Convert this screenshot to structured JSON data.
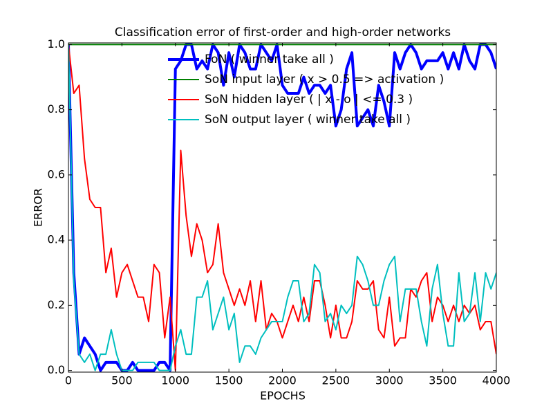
{
  "chart_data": {
    "type": "line",
    "title": "Classification error of first-order and high-order networks",
    "xlabel": "EPOCHS",
    "ylabel": "ERROR",
    "x": [
      0,
      50,
      100,
      150,
      200,
      250,
      300,
      350,
      400,
      450,
      500,
      550,
      600,
      650,
      700,
      750,
      800,
      850,
      900,
      950,
      1000,
      1050,
      1100,
      1150,
      1200,
      1250,
      1300,
      1350,
      1400,
      1450,
      1500,
      1550,
      1600,
      1650,
      1700,
      1750,
      1800,
      1850,
      1900,
      1950,
      2000,
      2050,
      2100,
      2150,
      2200,
      2250,
      2300,
      2350,
      2400,
      2450,
      2500,
      2550,
      2600,
      2650,
      2700,
      2750,
      2800,
      2850,
      2900,
      2950,
      3000,
      3050,
      3100,
      3150,
      3200,
      3250,
      3300,
      3350,
      3400,
      3450,
      3500,
      3550,
      3600,
      3650,
      3700,
      3750,
      3800,
      3850,
      3900,
      3950,
      4000
    ],
    "series": [
      {
        "name": "FoN ( winner take all )",
        "color": "#0000ff",
        "linewidth": 4,
        "values": [
          1.0,
          0.3,
          0.05,
          0.1,
          0.075,
          0.05,
          0.0,
          0.025,
          0.025,
          0.025,
          0.0,
          0.0,
          0.025,
          0.0,
          0.0,
          0.0,
          0.0,
          0.025,
          0.025,
          0.0,
          0.925,
          0.95,
          1.0,
          1.0,
          0.925,
          0.95,
          0.925,
          1.0,
          0.975,
          0.875,
          0.975,
          0.9,
          1.0,
          0.975,
          0.925,
          0.925,
          1.0,
          0.975,
          0.95,
          1.0,
          0.875,
          0.85,
          0.85,
          0.85,
          0.9,
          0.85,
          0.875,
          0.875,
          0.85,
          0.875,
          0.75,
          0.8,
          0.925,
          0.975,
          0.75,
          0.775,
          0.8,
          0.75,
          0.875,
          0.825,
          0.75,
          0.975,
          0.925,
          0.975,
          1.0,
          0.975,
          0.925,
          0.95,
          0.95,
          0.95,
          0.975,
          0.925,
          0.975,
          0.925,
          1.0,
          0.95,
          0.925,
          1.0,
          1.0,
          0.975,
          0.925
        ]
      },
      {
        "name": "SoN input layer ( x > 0.5 => activation )",
        "color": "#008000",
        "linewidth": 2,
        "values": [
          1,
          1,
          1,
          1,
          1,
          1,
          1,
          1,
          1,
          1,
          1,
          1,
          1,
          1,
          1,
          1,
          1,
          1,
          1,
          1,
          1,
          1,
          1,
          1,
          1,
          1,
          1,
          1,
          1,
          1,
          1,
          1,
          1,
          1,
          1,
          1,
          1,
          1,
          1,
          1,
          1,
          1,
          1,
          1,
          1,
          1,
          1,
          1,
          1,
          1,
          1,
          1,
          1,
          1,
          1,
          1,
          1,
          1,
          1,
          1,
          1,
          1,
          1,
          1,
          1,
          1,
          1,
          1,
          1,
          1,
          1,
          1,
          1,
          1,
          1,
          1,
          1,
          1,
          1,
          1,
          1
        ]
      },
      {
        "name": "SoN hidden layer ( | x - o | <= 0.3 )",
        "color": "#ff0000",
        "linewidth": 2,
        "values": [
          1.0,
          0.85,
          0.875,
          0.65,
          0.525,
          0.5,
          0.5,
          0.3,
          0.375,
          0.225,
          0.3,
          0.325,
          0.275,
          0.225,
          0.225,
          0.15,
          0.325,
          0.3,
          0.1,
          0.225,
          0.0,
          0.675,
          0.475,
          0.35,
          0.45,
          0.4,
          0.3,
          0.325,
          0.45,
          0.3,
          0.25,
          0.2,
          0.25,
          0.2,
          0.275,
          0.15,
          0.275,
          0.125,
          0.175,
          0.15,
          0.1,
          0.15,
          0.2,
          0.15,
          0.225,
          0.15,
          0.275,
          0.275,
          0.2,
          0.1,
          0.2,
          0.1,
          0.1,
          0.15,
          0.275,
          0.25,
          0.25,
          0.275,
          0.125,
          0.1,
          0.225,
          0.075,
          0.1,
          0.1,
          0.25,
          0.225,
          0.275,
          0.3,
          0.15,
          0.225,
          0.2,
          0.15,
          0.2,
          0.15,
          0.2,
          0.175,
          0.2,
          0.125,
          0.15,
          0.15,
          0.05
        ]
      },
      {
        "name": "SoN output layer ( winner take all )",
        "color": "#00bfbf",
        "linewidth": 2,
        "values": [
          1.0,
          0.275,
          0.05,
          0.025,
          0.05,
          0.0,
          0.05,
          0.05,
          0.125,
          0.05,
          0.0,
          0.0,
          0.0,
          0.025,
          0.025,
          0.025,
          0.025,
          0.0,
          0.0,
          0.0,
          0.075,
          0.125,
          0.05,
          0.05,
          0.225,
          0.225,
          0.275,
          0.125,
          0.175,
          0.225,
          0.125,
          0.175,
          0.025,
          0.075,
          0.075,
          0.05,
          0.1,
          0.125,
          0.15,
          0.15,
          0.15,
          0.225,
          0.275,
          0.275,
          0.15,
          0.175,
          0.325,
          0.3,
          0.15,
          0.175,
          0.125,
          0.2,
          0.175,
          0.2,
          0.35,
          0.325,
          0.275,
          0.2,
          0.2,
          0.275,
          0.325,
          0.35,
          0.15,
          0.25,
          0.25,
          0.25,
          0.15,
          0.075,
          0.25,
          0.325,
          0.175,
          0.075,
          0.075,
          0.3,
          0.15,
          0.175,
          0.3,
          0.15,
          0.3,
          0.25,
          0.3
        ]
      }
    ],
    "xlim": [
      0,
      4000
    ],
    "xticks": [
      0,
      500,
      1000,
      1500,
      2000,
      2500,
      3000,
      3500,
      4000
    ],
    "ylim": [
      -0.005,
      1.005
    ],
    "yticks": [
      {
        "value": 0,
        "label": "0.0"
      },
      0.2,
      0.4,
      0.6,
      0.8,
      {
        "value": 1,
        "label": "1.0"
      }
    ],
    "grid": false,
    "legend": "upper right"
  }
}
